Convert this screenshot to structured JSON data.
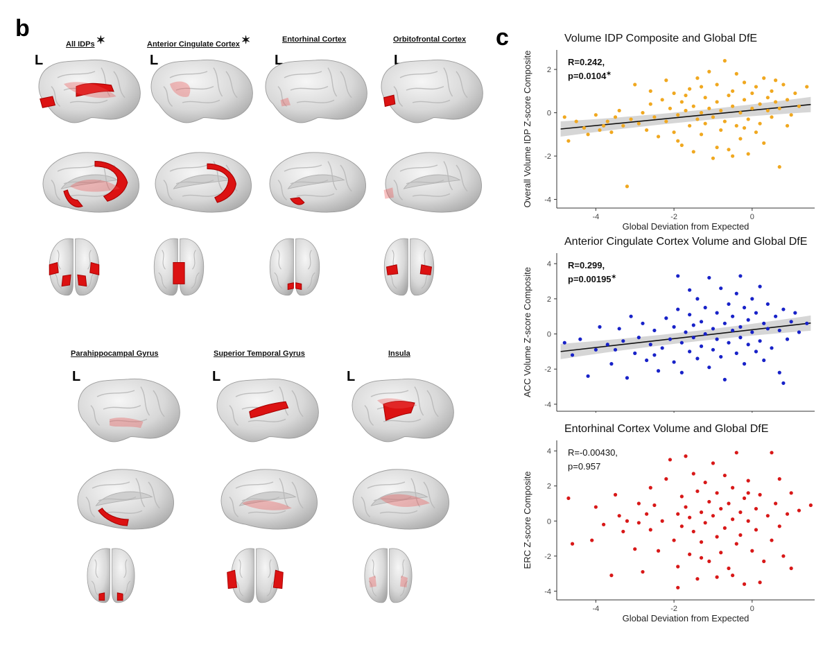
{
  "panel_b": {
    "letter": "b",
    "hemisphere_label": "L",
    "regions": [
      {
        "title": "All IDPs",
        "significant": true,
        "star": "✶"
      },
      {
        "title": "Anterior Cingulate Cortex",
        "significant": true,
        "star": "✶"
      },
      {
        "title": "Entorhinal Cortex",
        "significant": false
      },
      {
        "title": "Orbitofrontal Cortex",
        "significant": false
      },
      {
        "title": "Parahippocampal Gyrus",
        "significant": false
      },
      {
        "title": "Superior Temporal Gyrus",
        "significant": false
      },
      {
        "title": "Insula",
        "significant": false
      }
    ]
  },
  "panel_c": {
    "letter": "c"
  },
  "chart_data": [
    {
      "type": "scatter",
      "title": "Volume IDP Composite and Global DfE",
      "xlabel": "Global Deviation from Expected",
      "ylabel": "Overall Volume IDP Z-score Composite",
      "xlim": [
        -5.0,
        1.6
      ],
      "ylim": [
        -4.4,
        2.9
      ],
      "xticks": [
        -4,
        -2,
        0
      ],
      "yticks": [
        -4,
        -2,
        0,
        2
      ],
      "color": "#f0a820",
      "stat_line1": "R=0.242,",
      "stat_line2": "p=0.0104",
      "stat_star": "✶",
      "bold_stats": true,
      "fit": {
        "x0": -4.9,
        "y0": -0.75,
        "x1": 1.5,
        "y1": 0.38
      },
      "points": [
        [
          -4.8,
          -0.2
        ],
        [
          -4.7,
          -1.3
        ],
        [
          -4.5,
          -0.4
        ],
        [
          -4.3,
          -0.7
        ],
        [
          -4.2,
          -1.0
        ],
        [
          -4.0,
          -0.1
        ],
        [
          -3.8,
          -0.6
        ],
        [
          -3.7,
          -0.4
        ],
        [
          -3.6,
          -0.9
        ],
        [
          -3.5,
          -0.2
        ],
        [
          -3.4,
          0.1
        ],
        [
          -3.3,
          -0.6
        ],
        [
          -3.2,
          -3.4
        ],
        [
          -3.1,
          -0.3
        ],
        [
          -3.0,
          1.3
        ],
        [
          -2.9,
          -0.5
        ],
        [
          -2.8,
          0.0
        ],
        [
          -2.7,
          -0.8
        ],
        [
          -2.6,
          0.4
        ],
        [
          -2.5,
          -0.2
        ],
        [
          -2.4,
          -1.1
        ],
        [
          -2.3,
          0.6
        ],
        [
          -2.2,
          -0.4
        ],
        [
          -2.1,
          0.2
        ],
        [
          -2.0,
          -0.9
        ],
        [
          -2.0,
          0.9
        ],
        [
          -1.9,
          -0.1
        ],
        [
          -1.8,
          0.5
        ],
        [
          -1.8,
          -1.5
        ],
        [
          -1.7,
          0.1
        ],
        [
          -1.6,
          1.1
        ],
        [
          -1.6,
          -0.6
        ],
        [
          -1.5,
          0.3
        ],
        [
          -1.5,
          -1.8
        ],
        [
          -1.4,
          -0.3
        ],
        [
          -1.4,
          1.6
        ],
        [
          -1.3,
          0.0
        ],
        [
          -1.3,
          -1.0
        ],
        [
          -1.2,
          0.7
        ],
        [
          -1.2,
          -0.5
        ],
        [
          -1.1,
          1.9
        ],
        [
          -1.1,
          0.2
        ],
        [
          -1.0,
          -2.1
        ],
        [
          -1.0,
          -0.2
        ],
        [
          -0.9,
          0.5
        ],
        [
          -0.9,
          1.3
        ],
        [
          -0.8,
          -0.8
        ],
        [
          -0.8,
          0.1
        ],
        [
          -0.7,
          2.4
        ],
        [
          -0.7,
          -0.4
        ],
        [
          -0.6,
          0.8
        ],
        [
          -0.6,
          -1.7
        ],
        [
          -0.5,
          0.3
        ],
        [
          -0.5,
          1.0
        ],
        [
          -0.4,
          -0.6
        ],
        [
          -0.4,
          1.8
        ],
        [
          -0.3,
          0.0
        ],
        [
          -0.3,
          -1.2
        ],
        [
          -0.2,
          0.6
        ],
        [
          -0.2,
          1.4
        ],
        [
          -0.1,
          -0.3
        ],
        [
          -0.1,
          -1.9
        ],
        [
          0.0,
          0.9
        ],
        [
          0.0,
          0.2
        ],
        [
          0.1,
          -0.9
        ],
        [
          0.1,
          1.2
        ],
        [
          0.2,
          0.4
        ],
        [
          0.2,
          -0.5
        ],
        [
          0.3,
          1.6
        ],
        [
          0.3,
          -1.4
        ],
        [
          0.4,
          0.1
        ],
        [
          0.4,
          0.7
        ],
        [
          0.5,
          -0.2
        ],
        [
          0.5,
          1.0
        ],
        [
          0.6,
          0.5
        ],
        [
          0.7,
          -2.5
        ],
        [
          0.7,
          0.2
        ],
        [
          0.8,
          1.3
        ],
        [
          0.9,
          0.6
        ],
        [
          1.0,
          -0.1
        ],
        [
          1.1,
          0.9
        ],
        [
          1.2,
          0.3
        ],
        [
          1.4,
          1.2
        ],
        [
          -2.6,
          1.0
        ],
        [
          -1.9,
          -1.3
        ],
        [
          -1.7,
          0.8
        ],
        [
          -0.9,
          -1.6
        ],
        [
          -0.2,
          -0.7
        ],
        [
          0.6,
          1.5
        ],
        [
          -3.9,
          -0.8
        ],
        [
          -2.2,
          1.5
        ],
        [
          -1.3,
          1.2
        ],
        [
          -0.5,
          -2.0
        ],
        [
          0.9,
          -0.6
        ]
      ]
    },
    {
      "type": "scatter",
      "title": "Anterior Cingulate Cortex Volume and Global DfE",
      "xlabel": "",
      "ylabel": "ACC Volume Z-score Composite",
      "xlim": [
        -5.0,
        1.6
      ],
      "ylim": [
        -4.4,
        4.6
      ],
      "xticks": [
        -4,
        -2,
        0
      ],
      "yticks": [
        -4,
        -2,
        0,
        2,
        4
      ],
      "color": "#1822c8",
      "stat_line1": "R=0.299,",
      "stat_line2": "p=0.00195",
      "stat_star": "✶",
      "bold_stats": true,
      "fit": {
        "x0": -4.9,
        "y0": -1.0,
        "x1": 1.5,
        "y1": 0.62
      },
      "points": [
        [
          -4.8,
          -0.5
        ],
        [
          -4.6,
          -1.2
        ],
        [
          -4.4,
          -0.3
        ],
        [
          -4.2,
          -2.4
        ],
        [
          -4.0,
          -0.9
        ],
        [
          -3.9,
          0.4
        ],
        [
          -3.7,
          -0.6
        ],
        [
          -3.6,
          -1.7
        ],
        [
          -3.4,
          0.3
        ],
        [
          -3.3,
          -0.4
        ],
        [
          -3.2,
          -2.5
        ],
        [
          -3.1,
          1.0
        ],
        [
          -3.0,
          -1.1
        ],
        [
          -2.9,
          -0.2
        ],
        [
          -2.8,
          0.6
        ],
        [
          -2.7,
          -1.5
        ],
        [
          -2.6,
          -0.6
        ],
        [
          -2.5,
          0.2
        ],
        [
          -2.4,
          -2.1
        ],
        [
          -2.3,
          -0.8
        ],
        [
          -2.2,
          0.9
        ],
        [
          -2.1,
          -0.3
        ],
        [
          -2.0,
          -1.6
        ],
        [
          -2.0,
          0.4
        ],
        [
          -1.9,
          1.4
        ],
        [
          -1.8,
          -0.5
        ],
        [
          -1.8,
          -2.2
        ],
        [
          -1.7,
          0.1
        ],
        [
          -1.6,
          1.1
        ],
        [
          -1.6,
          -1.0
        ],
        [
          -1.5,
          0.5
        ],
        [
          -1.5,
          -0.2
        ],
        [
          -1.4,
          2.0
        ],
        [
          -1.4,
          -1.4
        ],
        [
          -1.3,
          0.7
        ],
        [
          -1.3,
          -0.7
        ],
        [
          -1.2,
          1.5
        ],
        [
          -1.2,
          0.0
        ],
        [
          -1.1,
          -1.9
        ],
        [
          -1.1,
          3.2
        ],
        [
          -1.0,
          0.3
        ],
        [
          -1.0,
          -0.9
        ],
        [
          -0.9,
          1.2
        ],
        [
          -0.9,
          -0.3
        ],
        [
          -0.8,
          2.6
        ],
        [
          -0.8,
          -1.3
        ],
        [
          -0.7,
          0.6
        ],
        [
          -0.7,
          -2.6
        ],
        [
          -0.6,
          1.7
        ],
        [
          -0.6,
          -0.5
        ],
        [
          -0.5,
          0.2
        ],
        [
          -0.5,
          1.0
        ],
        [
          -0.4,
          -1.1
        ],
        [
          -0.4,
          2.3
        ],
        [
          -0.3,
          0.4
        ],
        [
          -0.3,
          -0.2
        ],
        [
          -0.2,
          1.5
        ],
        [
          -0.2,
          -1.7
        ],
        [
          -0.1,
          0.8
        ],
        [
          -0.1,
          -0.6
        ],
        [
          0.0,
          2.0
        ],
        [
          0.0,
          0.1
        ],
        [
          0.1,
          -1.0
        ],
        [
          0.1,
          1.2
        ],
        [
          0.2,
          2.7
        ],
        [
          0.2,
          -0.4
        ],
        [
          0.3,
          0.6
        ],
        [
          0.3,
          -1.5
        ],
        [
          0.4,
          1.7
        ],
        [
          0.4,
          0.3
        ],
        [
          0.5,
          -0.8
        ],
        [
          0.6,
          1.0
        ],
        [
          0.7,
          -2.2
        ],
        [
          0.7,
          0.2
        ],
        [
          0.8,
          1.4
        ],
        [
          0.9,
          -0.3
        ],
        [
          1.0,
          0.7
        ],
        [
          1.1,
          1.2
        ],
        [
          1.2,
          0.1
        ],
        [
          1.4,
          0.6
        ],
        [
          -1.9,
          3.3
        ],
        [
          -2.5,
          -1.2
        ],
        [
          -0.3,
          3.3
        ],
        [
          0.8,
          -2.8
        ],
        [
          -1.6,
          2.5
        ],
        [
          -3.5,
          -0.9
        ]
      ]
    },
    {
      "type": "scatter",
      "title": "Entorhinal Cortex Volume and Global DfE",
      "xlabel": "Global Deviation from Expected",
      "ylabel": "ERC Z-score Composite",
      "xlim": [
        -5.0,
        1.6
      ],
      "ylim": [
        -4.5,
        4.6
      ],
      "xticks": [
        -4,
        -2,
        0
      ],
      "yticks": [
        -4,
        -2,
        0,
        2,
        4
      ],
      "color": "#d81818",
      "stat_line1": "R=-0.00430,",
      "stat_line2": "p=0.957",
      "stat_star": "",
      "bold_stats": false,
      "fit": null,
      "points": [
        [
          -4.7,
          1.3
        ],
        [
          -4.6,
          -1.3
        ],
        [
          -4.1,
          -1.1
        ],
        [
          -4.0,
          0.8
        ],
        [
          -3.8,
          -0.2
        ],
        [
          -3.6,
          -3.1
        ],
        [
          -3.5,
          1.5
        ],
        [
          -3.4,
          0.3
        ],
        [
          -3.3,
          -0.6
        ],
        [
          -3.2,
          0.0
        ],
        [
          -3.0,
          -1.6
        ],
        [
          -2.9,
          1.0
        ],
        [
          -2.8,
          -2.9
        ],
        [
          -2.7,
          0.4
        ],
        [
          -2.6,
          -0.5
        ],
        [
          -2.5,
          0.9
        ],
        [
          -2.4,
          -1.7
        ],
        [
          -2.3,
          0.0
        ],
        [
          -2.2,
          2.4
        ],
        [
          -2.1,
          3.5
        ],
        [
          -2.0,
          -1.1
        ],
        [
          -1.9,
          0.4
        ],
        [
          -1.9,
          -2.6
        ],
        [
          -1.8,
          1.4
        ],
        [
          -1.8,
          -0.3
        ],
        [
          -1.7,
          3.7
        ],
        [
          -1.7,
          0.8
        ],
        [
          -1.6,
          -1.9
        ],
        [
          -1.6,
          0.2
        ],
        [
          -1.5,
          2.7
        ],
        [
          -1.5,
          -0.6
        ],
        [
          -1.4,
          1.7
        ],
        [
          -1.4,
          -3.3
        ],
        [
          -1.3,
          0.5
        ],
        [
          -1.3,
          -1.2
        ],
        [
          -1.2,
          2.2
        ],
        [
          -1.2,
          -0.1
        ],
        [
          -1.1,
          1.1
        ],
        [
          -1.1,
          -2.3
        ],
        [
          -1.0,
          3.3
        ],
        [
          -1.0,
          0.3
        ],
        [
          -0.9,
          -0.9
        ],
        [
          -0.9,
          1.6
        ],
        [
          -0.8,
          -1.8
        ],
        [
          -0.8,
          0.7
        ],
        [
          -0.7,
          2.6
        ],
        [
          -0.7,
          -0.4
        ],
        [
          -0.6,
          1.0
        ],
        [
          -0.6,
          -2.7
        ],
        [
          -0.5,
          0.1
        ],
        [
          -0.5,
          1.9
        ],
        [
          -0.4,
          -1.3
        ],
        [
          -0.4,
          3.9
        ],
        [
          -0.3,
          0.5
        ],
        [
          -0.3,
          -0.8
        ],
        [
          -0.2,
          1.3
        ],
        [
          -0.2,
          -3.6
        ],
        [
          -0.1,
          0.0
        ],
        [
          -0.1,
          2.3
        ],
        [
          0.0,
          -1.7
        ],
        [
          0.1,
          0.7
        ],
        [
          0.1,
          -0.5
        ],
        [
          0.2,
          1.5
        ],
        [
          0.3,
          -2.3
        ],
        [
          0.4,
          0.3
        ],
        [
          0.5,
          3.9
        ],
        [
          0.5,
          -1.1
        ],
        [
          0.6,
          1.0
        ],
        [
          0.7,
          -0.3
        ],
        [
          0.7,
          2.4
        ],
        [
          0.8,
          -2.0
        ],
        [
          0.9,
          0.4
        ],
        [
          1.0,
          -2.7
        ],
        [
          1.0,
          1.6
        ],
        [
          1.2,
          0.6
        ],
        [
          1.5,
          0.9
        ],
        [
          -2.9,
          -0.1
        ],
        [
          -1.3,
          -2.1
        ],
        [
          -0.5,
          -3.1
        ],
        [
          -1.9,
          -3.8
        ],
        [
          -0.9,
          -3.2
        ],
        [
          0.2,
          -3.5
        ],
        [
          -2.6,
          1.9
        ],
        [
          -0.1,
          1.6
        ]
      ]
    }
  ]
}
